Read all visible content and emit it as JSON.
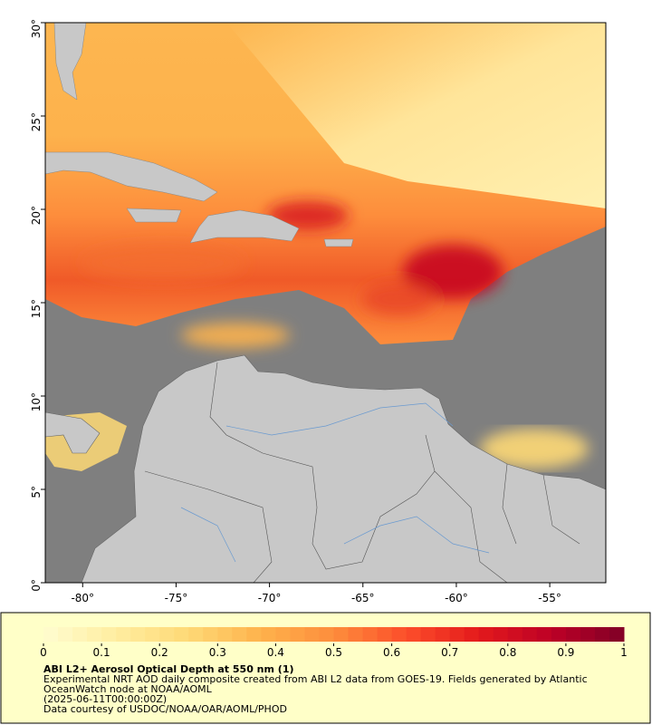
{
  "map": {
    "xlim": [
      -82,
      -52
    ],
    "ylim": [
      0,
      30
    ],
    "xticks": [
      {
        "value": -80,
        "label": "-80°"
      },
      {
        "value": -75,
        "label": "-75°"
      },
      {
        "value": -70,
        "label": "-70°"
      },
      {
        "value": -65,
        "label": "-65°"
      },
      {
        "value": -60,
        "label": "-60°"
      },
      {
        "value": -55,
        "label": "-55°"
      }
    ],
    "yticks": [
      {
        "value": 0,
        "label": "0°"
      },
      {
        "value": 5,
        "label": "5°"
      },
      {
        "value": 10,
        "label": "10°"
      },
      {
        "value": 15,
        "label": "15°"
      },
      {
        "value": 20,
        "label": "20°"
      },
      {
        "value": 25,
        "label": "25°"
      },
      {
        "value": 30,
        "label": "30°"
      }
    ]
  },
  "colorbar": {
    "lim": [
      0,
      1
    ],
    "ticks": [
      0,
      0.1,
      0.2,
      0.3,
      0.4,
      0.5,
      0.6,
      0.7,
      0.8,
      0.9,
      1
    ],
    "colorscale": [
      "#fffcd0",
      "#ffeda0",
      "#fed976",
      "#feb24c",
      "#fd8d3c",
      "#fc4e2a",
      "#e31a1c",
      "#bd0026",
      "#800026"
    ],
    "title": "ABI L2+ Aerosol Optical Depth at 550 nm (1)",
    "description": [
      "Experimental NRT AOD daily composite created from ABI L2 data from GOES-19. Fields generated by Atlantic",
      "OceanWatch node at NOAA/AOML"
    ],
    "time": "(2025-06-11T00:00:00Z)",
    "credit": "Data courtesy of USDOC/NOAA/OAR/AOML/PHOD"
  }
}
